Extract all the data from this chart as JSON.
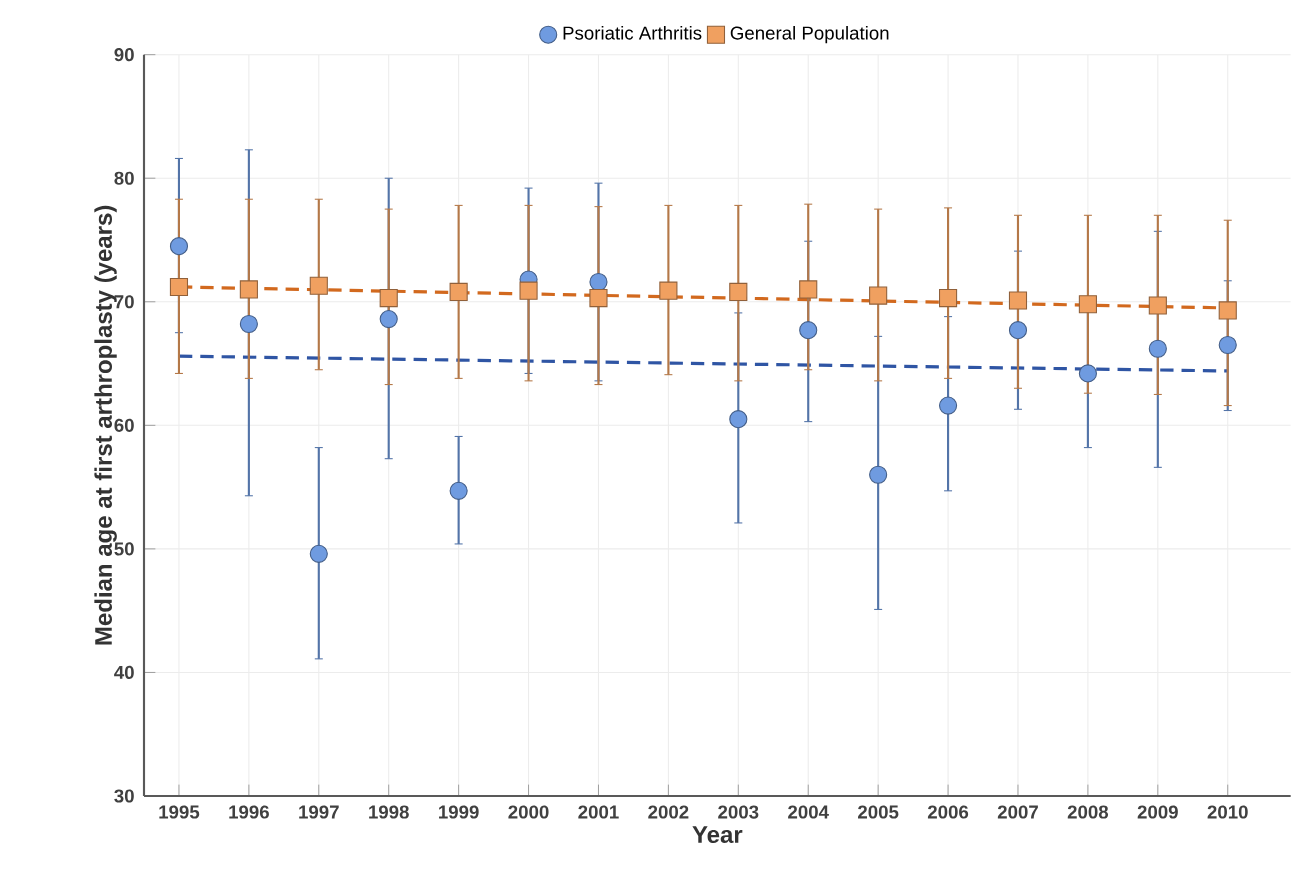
{
  "chart_data": {
    "type": "scatter",
    "xlabel": "Year",
    "ylabel": "Median age at first arthroplasty (years)",
    "xlim": [
      1994.5,
      2010.9
    ],
    "ylim": [
      30,
      90
    ],
    "xticks": [
      1995,
      1996,
      1997,
      1998,
      1999,
      2000,
      2001,
      2002,
      2003,
      2004,
      2005,
      2006,
      2007,
      2008,
      2009,
      2010
    ],
    "yticks": [
      30,
      40,
      50,
      60,
      70,
      80,
      90
    ],
    "grid": true,
    "legend": "top",
    "series": [
      {
        "name": "Psoriatic Arthritis",
        "color": "#6f9be0",
        "marker": "circle",
        "x": [
          1995,
          1996,
          1997,
          1998,
          1999,
          2000,
          2001,
          2002,
          2003,
          2004,
          2005,
          2006,
          2007,
          2008,
          2009,
          2010
        ],
        "values": [
          74.5,
          68.2,
          49.6,
          68.6,
          54.7,
          71.8,
          71.6,
          null,
          60.5,
          67.7,
          56.0,
          61.6,
          67.7,
          64.2,
          66.2,
          66.5
        ],
        "errors": [
          [
            67.5,
            81.6
          ],
          [
            54.3,
            82.3
          ],
          [
            41.1,
            58.2
          ],
          [
            57.3,
            80.0
          ],
          [
            50.4,
            59.1
          ],
          [
            64.2,
            79.2
          ],
          [
            63.6,
            79.6
          ],
          null,
          [
            52.1,
            69.1
          ],
          [
            60.3,
            74.9
          ],
          [
            45.1,
            67.2
          ],
          [
            54.7,
            68.8
          ],
          [
            61.3,
            74.1
          ],
          [
            58.2,
            70.0
          ],
          [
            56.6,
            75.7
          ],
          [
            61.2,
            71.7
          ]
        ]
      },
      {
        "name": "General Population",
        "color": "#f0a060",
        "marker": "square",
        "x": [
          1995,
          1996,
          1997,
          1998,
          1999,
          2000,
          2001,
          2002,
          2003,
          2004,
          2005,
          2006,
          2007,
          2008,
          2009,
          2010
        ],
        "values": [
          71.2,
          71.0,
          71.3,
          70.3,
          70.8,
          70.9,
          70.3,
          70.9,
          70.8,
          71.0,
          70.5,
          70.3,
          70.1,
          69.8,
          69.7,
          69.3
        ],
        "errors": [
          [
            64.2,
            78.3
          ],
          [
            63.8,
            78.3
          ],
          [
            64.5,
            78.3
          ],
          [
            63.3,
            77.5
          ],
          [
            63.8,
            77.8
          ],
          [
            63.6,
            77.8
          ],
          [
            63.3,
            77.7
          ],
          [
            64.1,
            77.8
          ],
          [
            63.6,
            77.8
          ],
          [
            64.5,
            77.9
          ],
          [
            63.6,
            77.5
          ],
          [
            63.8,
            77.6
          ],
          [
            63.0,
            77.0
          ],
          [
            62.6,
            77.0
          ],
          [
            62.5,
            77.0
          ],
          [
            61.6,
            76.6
          ]
        ]
      },
      {
        "type": "line",
        "color": "#2f55a4",
        "line_style": "dashed",
        "marker": "none",
        "x": [
          1995,
          2010
        ],
        "values": [
          65.6,
          64.4
        ]
      },
      {
        "type": "line",
        "color": "#d2691e",
        "line_style": "dashed",
        "marker": "none",
        "x": [
          1995,
          2010
        ],
        "values": [
          71.2,
          69.5
        ]
      }
    ]
  }
}
